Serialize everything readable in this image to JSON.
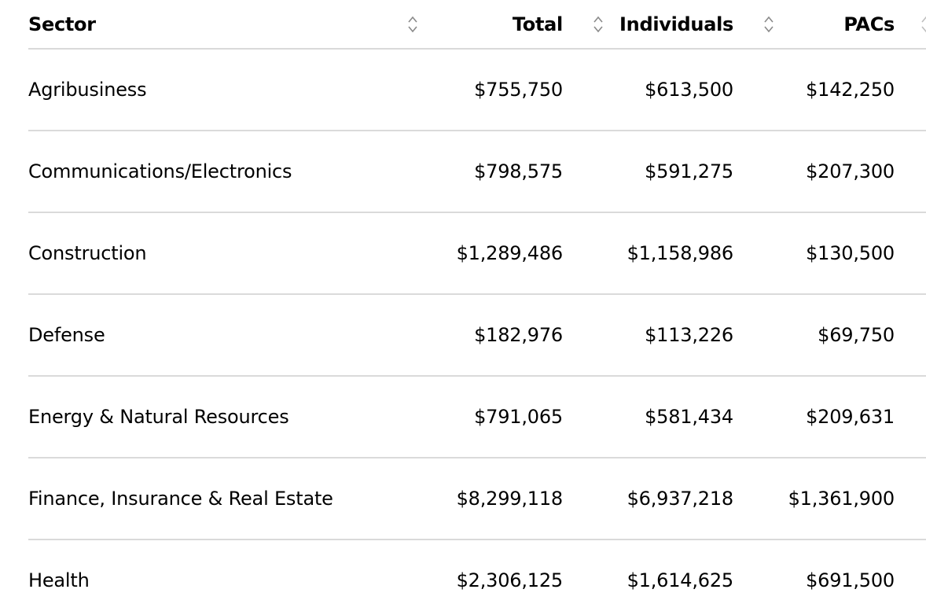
{
  "table": {
    "headers": {
      "sector": "Sector",
      "total": "Total",
      "individuals": "Individuals",
      "pacs": "PACs"
    },
    "rows": [
      {
        "sector": "Agribusiness",
        "total": "$755,750",
        "individuals": "$613,500",
        "pacs": "$142,250"
      },
      {
        "sector": "Communications/Electronics",
        "total": "$798,575",
        "individuals": "$591,275",
        "pacs": "$207,300"
      },
      {
        "sector": "Construction",
        "total": "$1,289,486",
        "individuals": "$1,158,986",
        "pacs": "$130,500"
      },
      {
        "sector": "Defense",
        "total": "$182,976",
        "individuals": "$113,226",
        "pacs": "$69,750"
      },
      {
        "sector": "Energy & Natural Resources",
        "total": "$791,065",
        "individuals": "$581,434",
        "pacs": "$209,631"
      },
      {
        "sector": "Finance, Insurance & Real Estate",
        "total": "$8,299,118",
        "individuals": "$6,937,218",
        "pacs": "$1,361,900"
      },
      {
        "sector": "Health",
        "total": "$2,306,125",
        "individuals": "$1,614,625",
        "pacs": "$691,500"
      }
    ],
    "sort_icon": "sort-updown-icon"
  }
}
